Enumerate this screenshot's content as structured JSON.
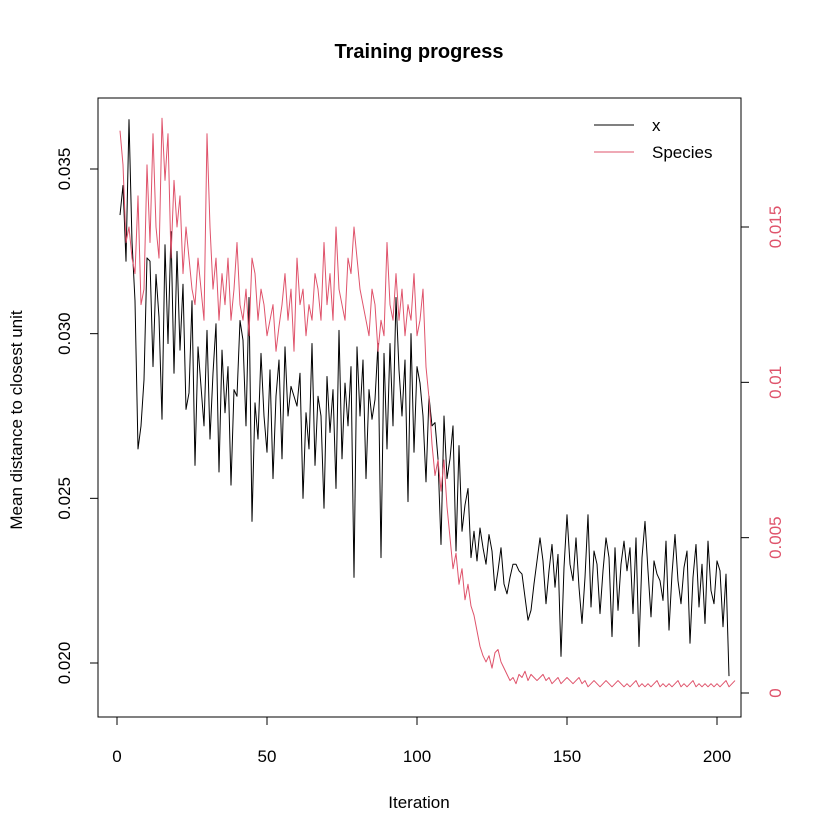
{
  "chart_data": {
    "type": "line",
    "title": "Training progress",
    "xlabel": "Iteration",
    "ylabel": "Mean distance to closest unit",
    "xlim": [
      1,
      200
    ],
    "ylim_left": [
      0.019,
      0.0366
    ],
    "ylim_right": [
      0.0,
      0.0185
    ],
    "x_ticks": [
      0,
      50,
      100,
      150,
      200
    ],
    "x_tick_labels": [
      "0",
      "50",
      "100",
      "150",
      "200"
    ],
    "y_left_ticks": [
      0.02,
      0.025,
      0.03,
      0.035
    ],
    "y_left_tick_labels": [
      "0.020",
      "0.025",
      "0.030",
      "0.035"
    ],
    "y_right_ticks": [
      0,
      0.005,
      0.01,
      0.015
    ],
    "y_right_tick_labels": [
      "0",
      "0.005",
      "0.01",
      "0.015"
    ],
    "right_axis_color": "#DF536B",
    "legend_position": "top-right",
    "series": [
      {
        "name": "x",
        "axis": "left",
        "color": "#000000",
        "values": [
          0.0336,
          0.0345,
          0.0322,
          0.0365,
          0.0328,
          0.031,
          0.0265,
          0.0272,
          0.0286,
          0.0323,
          0.0322,
          0.029,
          0.0318,
          0.0305,
          0.0274,
          0.0327,
          0.0297,
          0.0331,
          0.0288,
          0.0325,
          0.0295,
          0.0315,
          0.0277,
          0.0282,
          0.031,
          0.026,
          0.0296,
          0.0284,
          0.0272,
          0.0301,
          0.0268,
          0.0288,
          0.0303,
          0.0258,
          0.0295,
          0.0276,
          0.029,
          0.0254,
          0.0283,
          0.0281,
          0.0304,
          0.0298,
          0.0272,
          0.0311,
          0.0243,
          0.0279,
          0.0268,
          0.0294,
          0.0275,
          0.0264,
          0.0289,
          0.0256,
          0.0281,
          0.0292,
          0.0262,
          0.0296,
          0.0275,
          0.0284,
          0.0281,
          0.0278,
          0.0288,
          0.025,
          0.0276,
          0.0265,
          0.0297,
          0.026,
          0.0281,
          0.0275,
          0.0247,
          0.0287,
          0.027,
          0.0283,
          0.0253,
          0.0301,
          0.0262,
          0.0285,
          0.0272,
          0.029,
          0.0226,
          0.0296,
          0.0275,
          0.0292,
          0.0256,
          0.0283,
          0.0274,
          0.028,
          0.0297,
          0.0232,
          0.0294,
          0.0265,
          0.0297,
          0.0272,
          0.0311,
          0.0289,
          0.0275,
          0.0292,
          0.0249,
          0.03,
          0.0264,
          0.029,
          0.0285,
          0.0275,
          0.0255,
          0.0281,
          0.0272,
          0.0273,
          0.0262,
          0.0236,
          0.0275,
          0.0256,
          0.0262,
          0.0272,
          0.0234,
          0.0266,
          0.024,
          0.0248,
          0.0253,
          0.0232,
          0.024,
          0.0231,
          0.0241,
          0.0235,
          0.023,
          0.0239,
          0.0234,
          0.0222,
          0.0228,
          0.0235,
          0.0224,
          0.0221,
          0.0226,
          0.023,
          0.023,
          0.0228,
          0.0227,
          0.022,
          0.0213,
          0.0216,
          0.0224,
          0.0231,
          0.0238,
          0.0231,
          0.0218,
          0.0228,
          0.0236,
          0.0223,
          0.0233,
          0.0202,
          0.0229,
          0.0245,
          0.023,
          0.0225,
          0.0238,
          0.0223,
          0.0212,
          0.0226,
          0.0245,
          0.0217,
          0.0234,
          0.023,
          0.0215,
          0.0228,
          0.0238,
          0.0232,
          0.0208,
          0.0235,
          0.0216,
          0.023,
          0.0237,
          0.0228,
          0.0235,
          0.0215,
          0.0238,
          0.0205,
          0.0232,
          0.0243,
          0.0228,
          0.0214,
          0.0231,
          0.0227,
          0.0225,
          0.0219,
          0.0237,
          0.021,
          0.0227,
          0.0239,
          0.0225,
          0.0218,
          0.0229,
          0.0234,
          0.0206,
          0.0226,
          0.0236,
          0.0217,
          0.023,
          0.0212,
          0.0237,
          0.0222,
          0.0218,
          0.0231,
          0.0228,
          0.0211,
          0.0227,
          0.0196
        ]
      },
      {
        "name": "Species",
        "axis": "right",
        "color": "#DF536B",
        "values": [
          0.0181,
          0.017,
          0.0145,
          0.015,
          0.014,
          0.0135,
          0.016,
          0.0125,
          0.013,
          0.017,
          0.0145,
          0.018,
          0.015,
          0.014,
          0.0185,
          0.0165,
          0.018,
          0.014,
          0.0165,
          0.015,
          0.016,
          0.0135,
          0.015,
          0.014,
          0.013,
          0.0125,
          0.014,
          0.013,
          0.012,
          0.018,
          0.015,
          0.013,
          0.014,
          0.012,
          0.0135,
          0.0125,
          0.014,
          0.012,
          0.013,
          0.0145,
          0.0125,
          0.012,
          0.013,
          0.0115,
          0.014,
          0.0135,
          0.012,
          0.013,
          0.0125,
          0.0115,
          0.012,
          0.0125,
          0.011,
          0.0118,
          0.0125,
          0.0135,
          0.012,
          0.013,
          0.011,
          0.014,
          0.0125,
          0.013,
          0.0115,
          0.0125,
          0.012,
          0.0135,
          0.013,
          0.012,
          0.0145,
          0.0125,
          0.0135,
          0.012,
          0.015,
          0.013,
          0.0125,
          0.012,
          0.014,
          0.0135,
          0.015,
          0.014,
          0.013,
          0.0125,
          0.012,
          0.0115,
          0.013,
          0.0125,
          0.011,
          0.012,
          0.0115,
          0.0145,
          0.0125,
          0.012,
          0.0135,
          0.012,
          0.013,
          0.0115,
          0.0125,
          0.012,
          0.0135,
          0.0115,
          0.012,
          0.013,
          0.0105,
          0.0095,
          0.008,
          0.007,
          0.0075,
          0.0065,
          0.0075,
          0.006,
          0.005,
          0.004,
          0.0045,
          0.0035,
          0.004,
          0.003,
          0.0035,
          0.0028,
          0.0025,
          0.002,
          0.0015,
          0.0012,
          0.001,
          0.0012,
          0.0008,
          0.0013,
          0.0014,
          0.001,
          0.0008,
          0.0006,
          0.0004,
          0.0005,
          0.0003,
          0.0006,
          0.0005,
          0.0007,
          0.0004,
          0.0006,
          0.0005,
          0.0004,
          0.0005,
          0.0006,
          0.0004,
          0.0005,
          0.0003,
          0.0004,
          0.0005,
          0.0003,
          0.0004,
          0.0005,
          0.0004,
          0.0003,
          0.0004,
          0.0005,
          0.0003,
          0.0004,
          0.0002,
          0.0003,
          0.0004,
          0.0003,
          0.0002,
          0.0003,
          0.0004,
          0.0003,
          0.0002,
          0.0003,
          0.0004,
          0.0003,
          0.0002,
          0.0003,
          0.0002,
          0.0003,
          0.0004,
          0.0002,
          0.0003,
          0.0002,
          0.0003,
          0.0002,
          0.0003,
          0.0004,
          0.0002,
          0.0003,
          0.0002,
          0.0003,
          0.0002,
          0.0003,
          0.0004,
          0.0002,
          0.0003,
          0.0002,
          0.0003,
          0.0004,
          0.0002,
          0.0003,
          0.0002,
          0.0003,
          0.0002,
          0.0003,
          0.0002,
          0.0003,
          0.0002,
          0.0003,
          0.0004,
          0.0002,
          0.0003,
          0.0004
        ]
      }
    ]
  }
}
